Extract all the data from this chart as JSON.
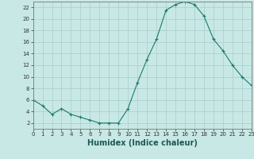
{
  "x": [
    0,
    1,
    2,
    3,
    4,
    5,
    6,
    7,
    8,
    9,
    10,
    11,
    12,
    13,
    14,
    15,
    16,
    17,
    18,
    19,
    20,
    21,
    22,
    23
  ],
  "y": [
    6.0,
    5.0,
    3.5,
    4.5,
    3.5,
    3.0,
    2.5,
    2.0,
    2.0,
    2.0,
    4.5,
    9.0,
    13.0,
    16.5,
    21.5,
    22.5,
    23.0,
    22.5,
    20.5,
    16.5,
    14.5,
    12.0,
    10.0,
    8.5
  ],
  "xlabel": "Humidex (Indice chaleur)",
  "xlim": [
    0,
    23
  ],
  "ylim": [
    1,
    23
  ],
  "yticks": [
    2,
    4,
    6,
    8,
    10,
    12,
    14,
    16,
    18,
    20,
    22
  ],
  "xticks": [
    0,
    1,
    2,
    3,
    4,
    5,
    6,
    7,
    8,
    9,
    10,
    11,
    12,
    13,
    14,
    15,
    16,
    17,
    18,
    19,
    20,
    21,
    22,
    23
  ],
  "line_color": "#1a7a6e",
  "marker": "+",
  "bg_color": "#c8e8e5",
  "grid_color": "#a8ccca",
  "spine_color": "#777777",
  "tick_color": "#333333",
  "xlabel_color": "#1a5a55",
  "xlabel_fontsize": 7.0,
  "tick_fontsize": 5.0
}
